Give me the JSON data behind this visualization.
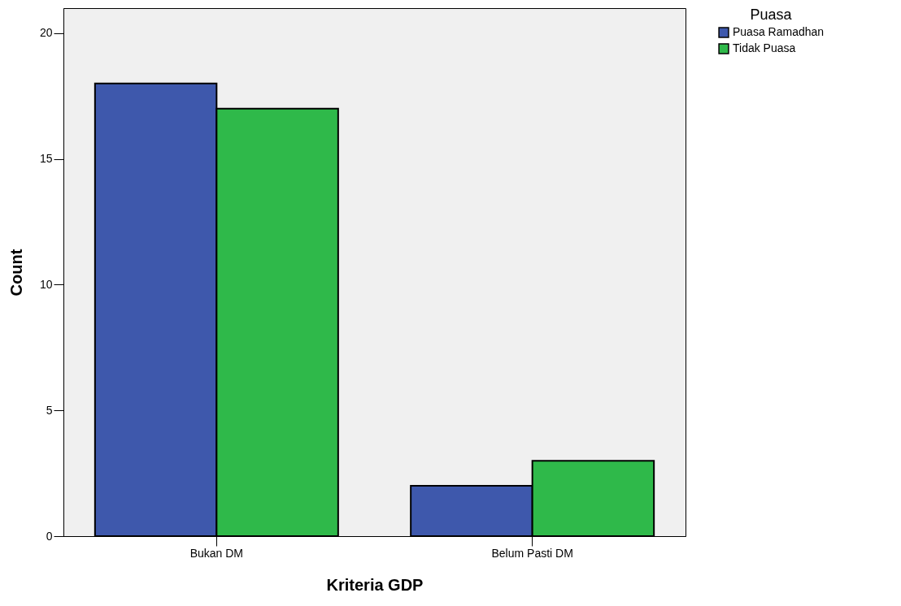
{
  "chart_data": {
    "type": "bar",
    "xlabel": "Kriteria GDP",
    "ylabel": "Count",
    "legend_title": "Puasa",
    "categories": [
      "Bukan DM",
      "Belum Pasti DM"
    ],
    "series": [
      {
        "name": "Puasa Ramadhan",
        "color": "#3e58ac",
        "values": [
          18,
          2
        ]
      },
      {
        "name": "Tidak Puasa",
        "color": "#2fb94a",
        "values": [
          17,
          3
        ]
      }
    ],
    "ylim": [
      0,
      21
    ],
    "yticks": [
      0,
      5,
      10,
      15,
      20
    ],
    "grid": false,
    "legend": "top right"
  }
}
